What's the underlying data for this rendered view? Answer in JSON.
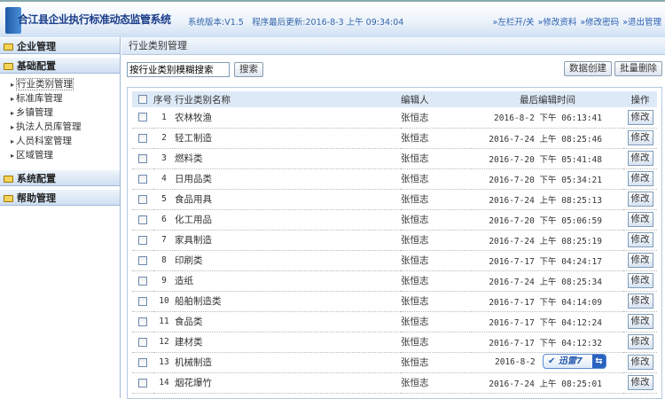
{
  "header": {
    "title": "合江县企业执行标准动态监管系统",
    "version": "系统版本:V1.5　程序最后更新:2016-8-3 上午 09:34:04",
    "links": [
      "»左栏开/关",
      "»修改资料",
      "»修改密码",
      "»退出管理"
    ]
  },
  "sidebar": {
    "sections": [
      {
        "label": "企业管理"
      },
      {
        "label": "基础配置",
        "items": [
          "行业类别管理",
          "标准库管理",
          "乡镇管理",
          "执法人员库管理",
          "人员科室管理",
          "区域管理"
        ]
      },
      {
        "label": "系统配置"
      },
      {
        "label": "帮助管理"
      }
    ]
  },
  "main": {
    "title": "行业类别管理",
    "search_placeholder": "按行业类别模糊搜索",
    "search_btn": "搜索",
    "create_btn": "数据创建",
    "delete_btn": "批量删除",
    "columns": [
      "序号",
      "行业类别名称",
      "编辑人",
      "最后编辑时间",
      "操作"
    ],
    "edit_label": "修改",
    "rows": [
      [
        "1",
        "农林牧渔",
        "张恒志",
        "2016-8-2 下午 06:13:41"
      ],
      [
        "2",
        "轻工制造",
        "张恒志",
        "2016-7-24 上午 08:25:46"
      ],
      [
        "3",
        "燃料类",
        "张恒志",
        "2016-7-20 下午 05:41:48"
      ],
      [
        "4",
        "日用品类",
        "张恒志",
        "2016-7-20 下午 05:34:21"
      ],
      [
        "5",
        "食品用具",
        "张恒志",
        "2016-7-24 上午 08:25:13"
      ],
      [
        "6",
        "化工用品",
        "张恒志",
        "2016-7-20 下午 05:06:59"
      ],
      [
        "7",
        "家具制造",
        "张恒志",
        "2016-7-24 上午 08:25:19"
      ],
      [
        "8",
        "印刷类",
        "张恒志",
        "2016-7-17 下午 04:24:17"
      ],
      [
        "9",
        "造纸",
        "张恒志",
        "2016-7-24 上午 08:25:34"
      ],
      [
        "10",
        "船舶制造类",
        "张恒志",
        "2016-7-17 下午 04:14:09"
      ],
      [
        "11",
        "食品类",
        "张恒志",
        "2016-7-17 下午 04:12:24"
      ],
      [
        "12",
        "建材类",
        "张恒志",
        "2016-7-17 下午 04:12:32"
      ],
      [
        "13",
        "机械制造",
        "张恒志",
        "2016-8-2"
      ],
      [
        "14",
        "烟花爆竹",
        "张恒志",
        "2016-7-24 上午 08:25:01"
      ]
    ]
  },
  "overlay": {
    "label": "迅雷7",
    "icon": "swap-icon"
  }
}
